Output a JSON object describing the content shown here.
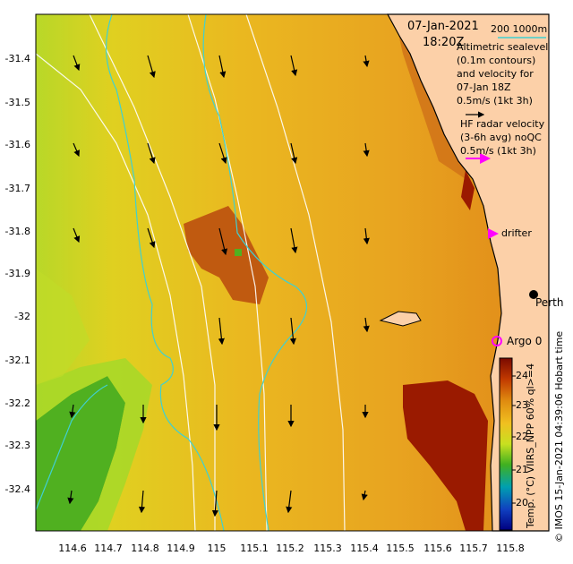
{
  "header": {
    "date": "07-Jan-2021",
    "time": "18:20Z",
    "contour_depths": "200  1000m"
  },
  "legend": {
    "altimetry": [
      "Altimetric sealevel",
      "(0.1m contours)",
      "and velocity for",
      "07-Jan 18Z",
      "0.5m/s (1kt 3h)"
    ],
    "hf_radar": [
      "HF radar velocity",
      "(3-6h avg) noQC",
      "0.5m/s (1kt 3h)"
    ],
    "drifter": "drifter",
    "argo": "Argo 0",
    "city": "Perth"
  },
  "axes": {
    "y_ticks": [
      "-31.4",
      "-31.5",
      "-31.6",
      "-31.7",
      "-31.8",
      "-31.9",
      "-32",
      "-32.1",
      "-32.2",
      "-32.3",
      "-32.4"
    ],
    "x_ticks": [
      "114.6",
      "114.7",
      "114.8",
      "114.9",
      "115",
      "115.1",
      "115.2",
      "115.3",
      "115.4",
      "115.5",
      "115.6",
      "115.7",
      "115.8"
    ]
  },
  "colorbar": {
    "ticks": [
      "24",
      "23",
      "22",
      "21",
      "20"
    ],
    "title": "Temp. (°C) VIIRS_NPP 60% ql>=4",
    "colors": [
      "#7a0a00",
      "#c03800",
      "#e08c10",
      "#f0c020",
      "#c8e020",
      "#40b020",
      "#00a0b0",
      "#1040c0",
      "#000080"
    ]
  },
  "credit": "© IMOS 15-Jan-2021 04:39:06 Hobart time",
  "colors": {
    "land": "#fcd0a8",
    "warm": "#e8a020",
    "hot": "#c05a10",
    "cool": "#c8e030",
    "cold": "#50b020",
    "contour_cyan": "#40d0d0",
    "hf_arrow": "#ff00ff"
  }
}
